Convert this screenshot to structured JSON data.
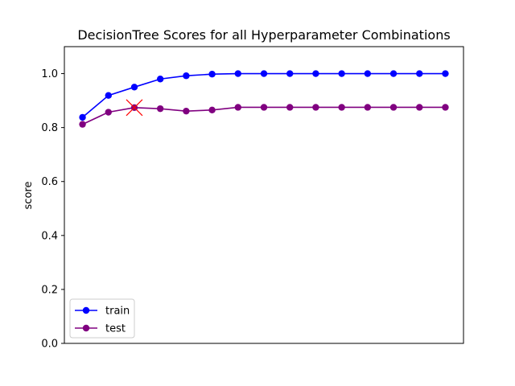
{
  "chart_data": {
    "type": "line",
    "title": "DecisionTree Scores for all Hyperparameter Combinations",
    "xlabel": "",
    "ylabel": "score",
    "ylim": [
      0,
      1.1
    ],
    "yticks": [
      "0.0",
      "0.2",
      "0.4",
      "0.6",
      "0.8",
      "1.0"
    ],
    "x": [
      0,
      1,
      2,
      3,
      4,
      5,
      6,
      7,
      8,
      9,
      10,
      11,
      12,
      13,
      14
    ],
    "series": [
      {
        "name": "train",
        "color": "#0000ff",
        "values": [
          0.838,
          0.919,
          0.95,
          0.98,
          0.992,
          0.998,
          1.0,
          1.0,
          1.0,
          1.0,
          1.0,
          1.0,
          1.0,
          1.0,
          1.0
        ]
      },
      {
        "name": "test",
        "color": "#800080",
        "values": [
          0.812,
          0.857,
          0.874,
          0.87,
          0.861,
          0.865,
          0.875,
          0.875,
          0.875,
          0.875,
          0.875,
          0.875,
          0.875,
          0.875,
          0.875
        ]
      }
    ],
    "best_marker": {
      "x": 2,
      "y": 0.874,
      "color": "#ff0000",
      "symbol": "x"
    },
    "legend_position": "lower-left",
    "grid": false
  }
}
